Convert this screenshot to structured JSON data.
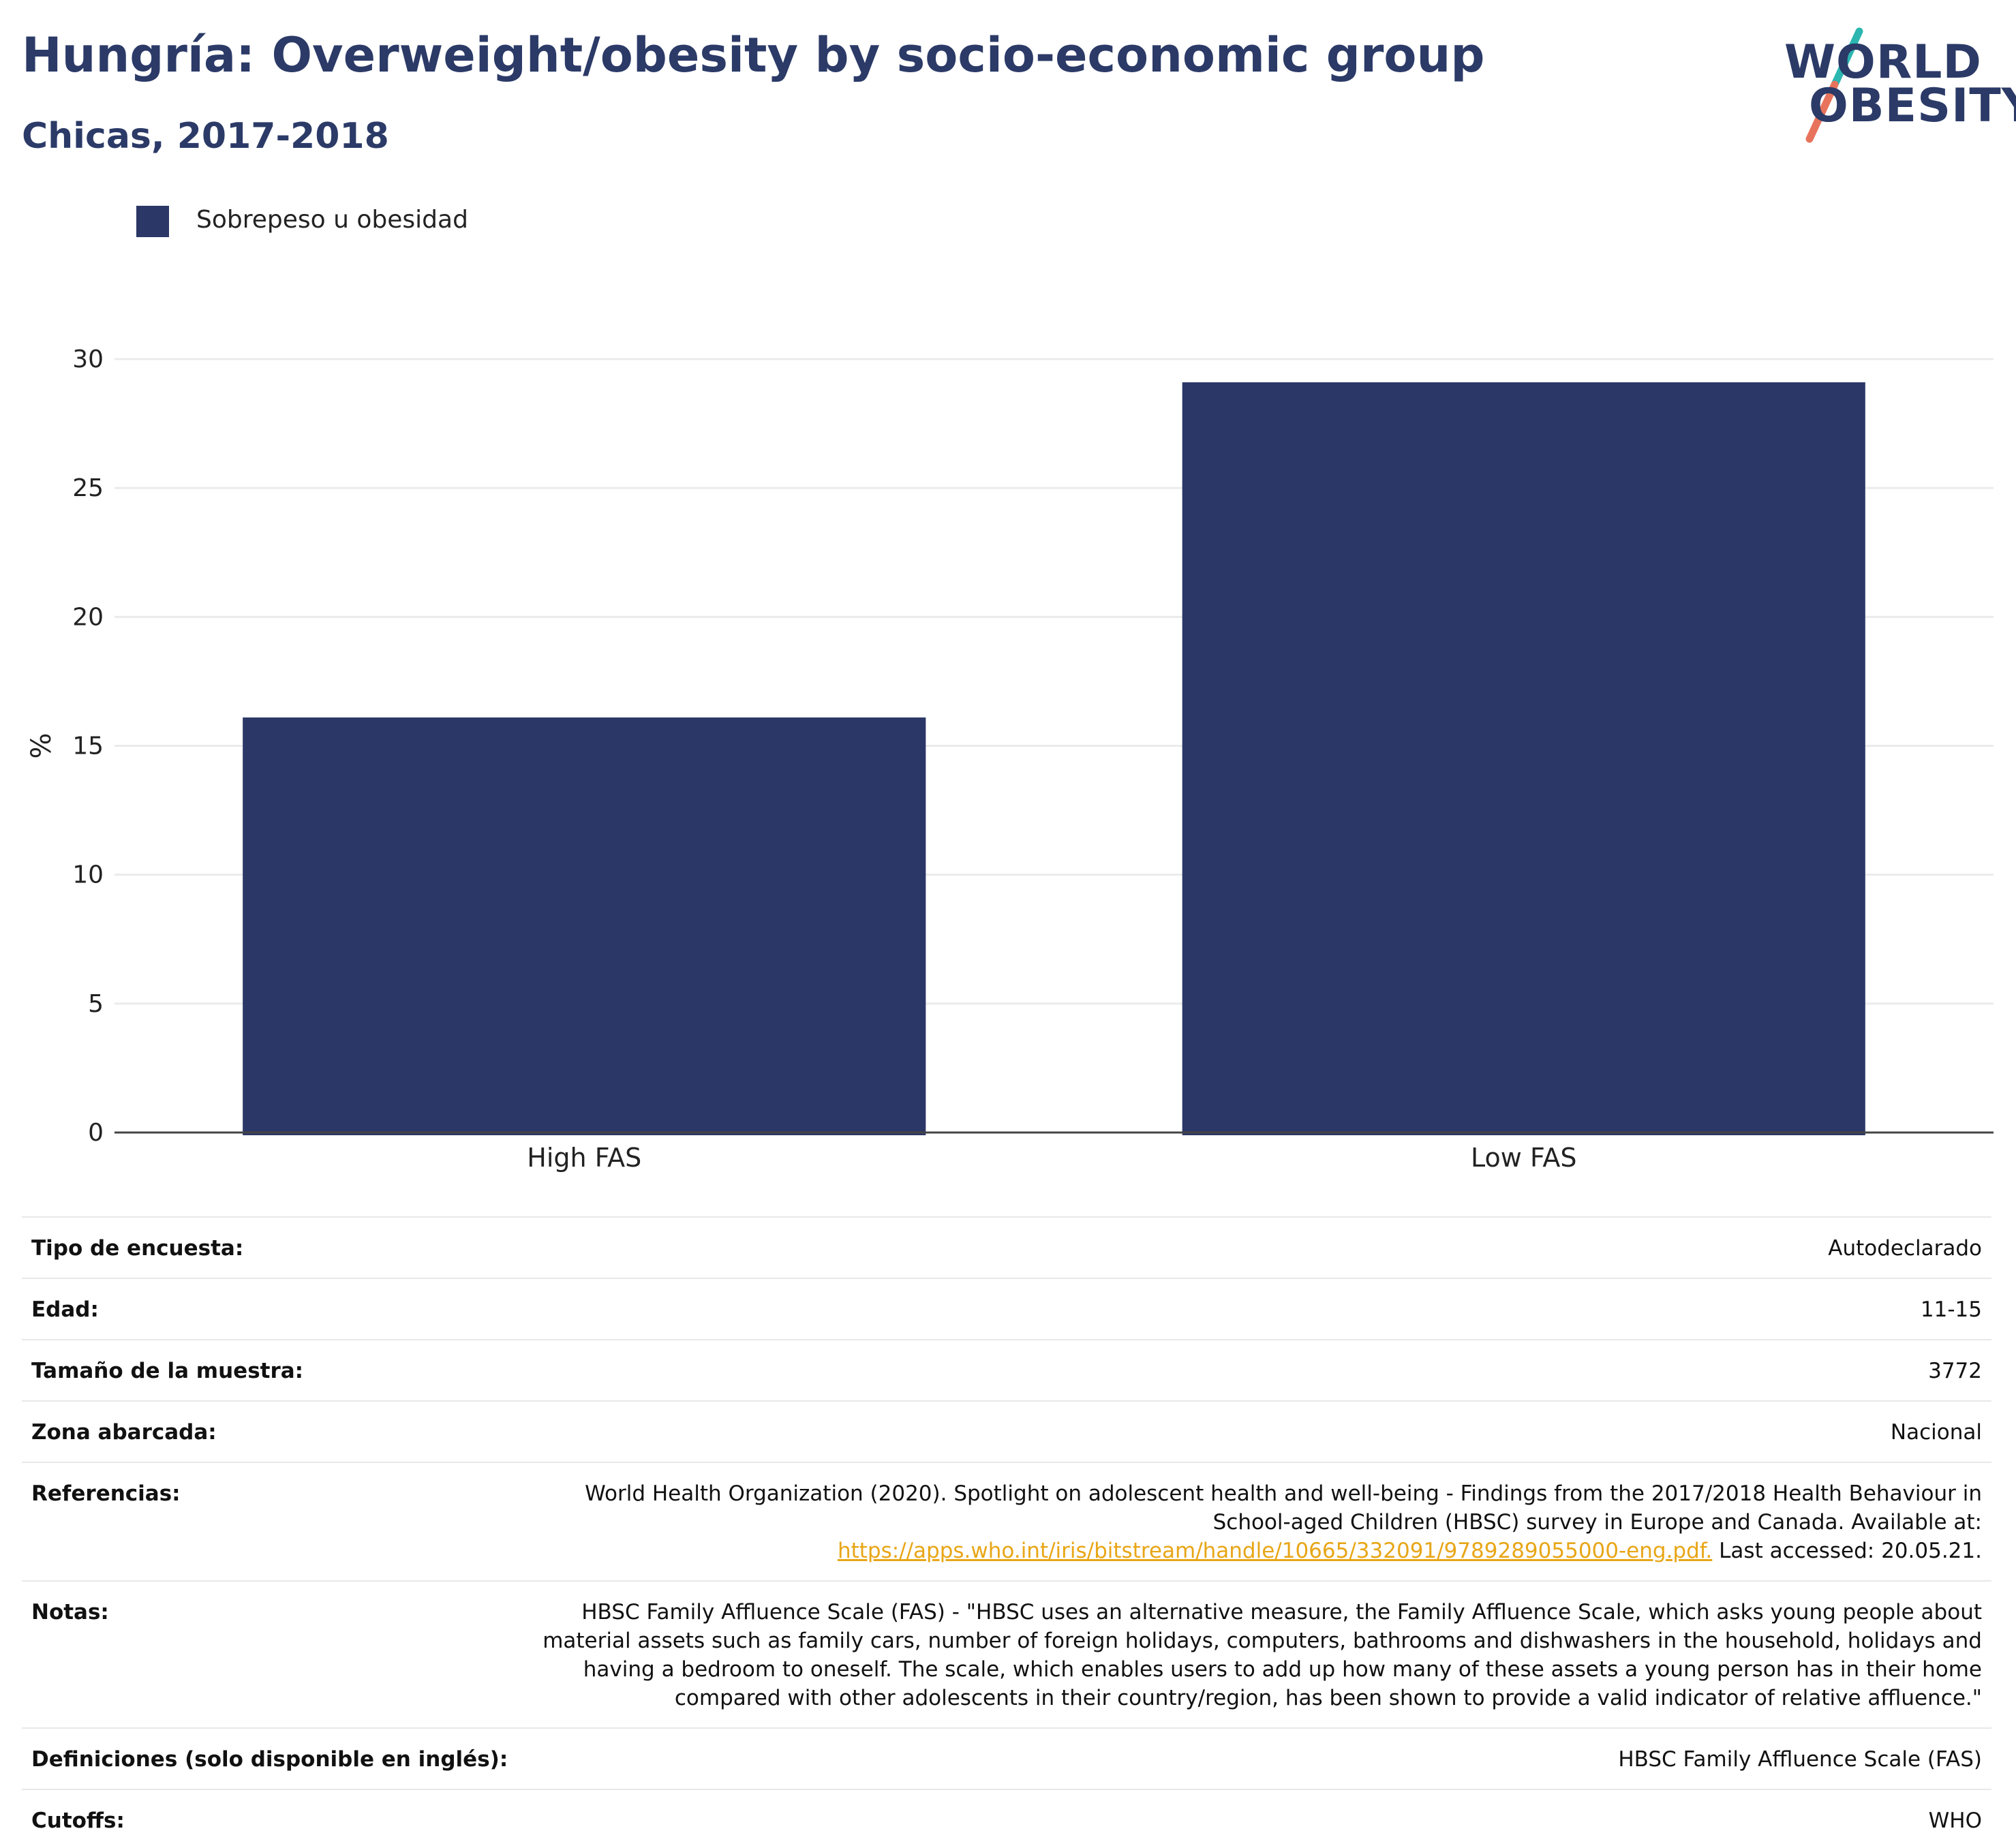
{
  "header": {
    "title": "Hungría: Overweight/obesity by socio-economic group",
    "subtitle": "Chicas, 2017-2018"
  },
  "logo": {
    "line1": "WORLD",
    "line2": "OBESITY",
    "colors": {
      "text": "#2b3a67",
      "slash_top": "#2bb6b0",
      "slash_bottom": "#e8735c"
    }
  },
  "legend": {
    "label": "Sobrepeso u obesidad",
    "color": "#2b3766"
  },
  "chart_data": {
    "type": "bar",
    "categories": [
      "High FAS",
      "Low FAS"
    ],
    "series": [
      {
        "name": "Sobrepeso u obesidad",
        "values": [
          16.1,
          29.1
        ],
        "color": "#2b3766"
      }
    ],
    "ylabel": "%",
    "xlabel": "",
    "ylim": [
      0,
      30
    ],
    "yticks": [
      0,
      5,
      10,
      15,
      20,
      25,
      30
    ],
    "grid": true
  },
  "info_table": {
    "rows": [
      {
        "label": "Tipo de encuesta:",
        "value": "Autodeclarado"
      },
      {
        "label": "Edad:",
        "value": "11-15"
      },
      {
        "label": "Tamaño de la muestra:",
        "value": "3772"
      },
      {
        "label": "Zona abarcada:",
        "value": "Nacional"
      },
      {
        "label": "Referencias:",
        "value_line1": "World Health Organization (2020). Spotlight on adolescent health and well-being - Findings from the 2017/2018 Health Behaviour in",
        "value_line2": "School-aged Children (HBSC) survey in Europe and Canada. Available at:",
        "link": "https://apps.who.int/iris/bitstream/handle/10665/332091/9789289055000-eng.pdf.",
        "value_tail": " Last accessed: 20.05.21."
      },
      {
        "label": "Notas:",
        "value_line1": "HBSC Family Affluence Scale (FAS) - \"HBSC uses an alternative measure, the Family Affluence Scale, which asks young people about",
        "value_line2": "material assets such as family cars, number of foreign holidays, computers, bathrooms and dishwashers in the household, holidays and",
        "value_line3": "having a bedroom to oneself. The scale, which enables users to add up how many of these assets a young person has in their home",
        "value_line4": "compared with other adolescents in their country/region, has been shown to provide a valid indicator of relative affluence.\""
      },
      {
        "label": "Definiciones (solo disponible en inglés):",
        "value": "HBSC Family Affluence Scale (FAS)"
      },
      {
        "label": "Cutoffs:",
        "value": "WHO"
      }
    ]
  }
}
